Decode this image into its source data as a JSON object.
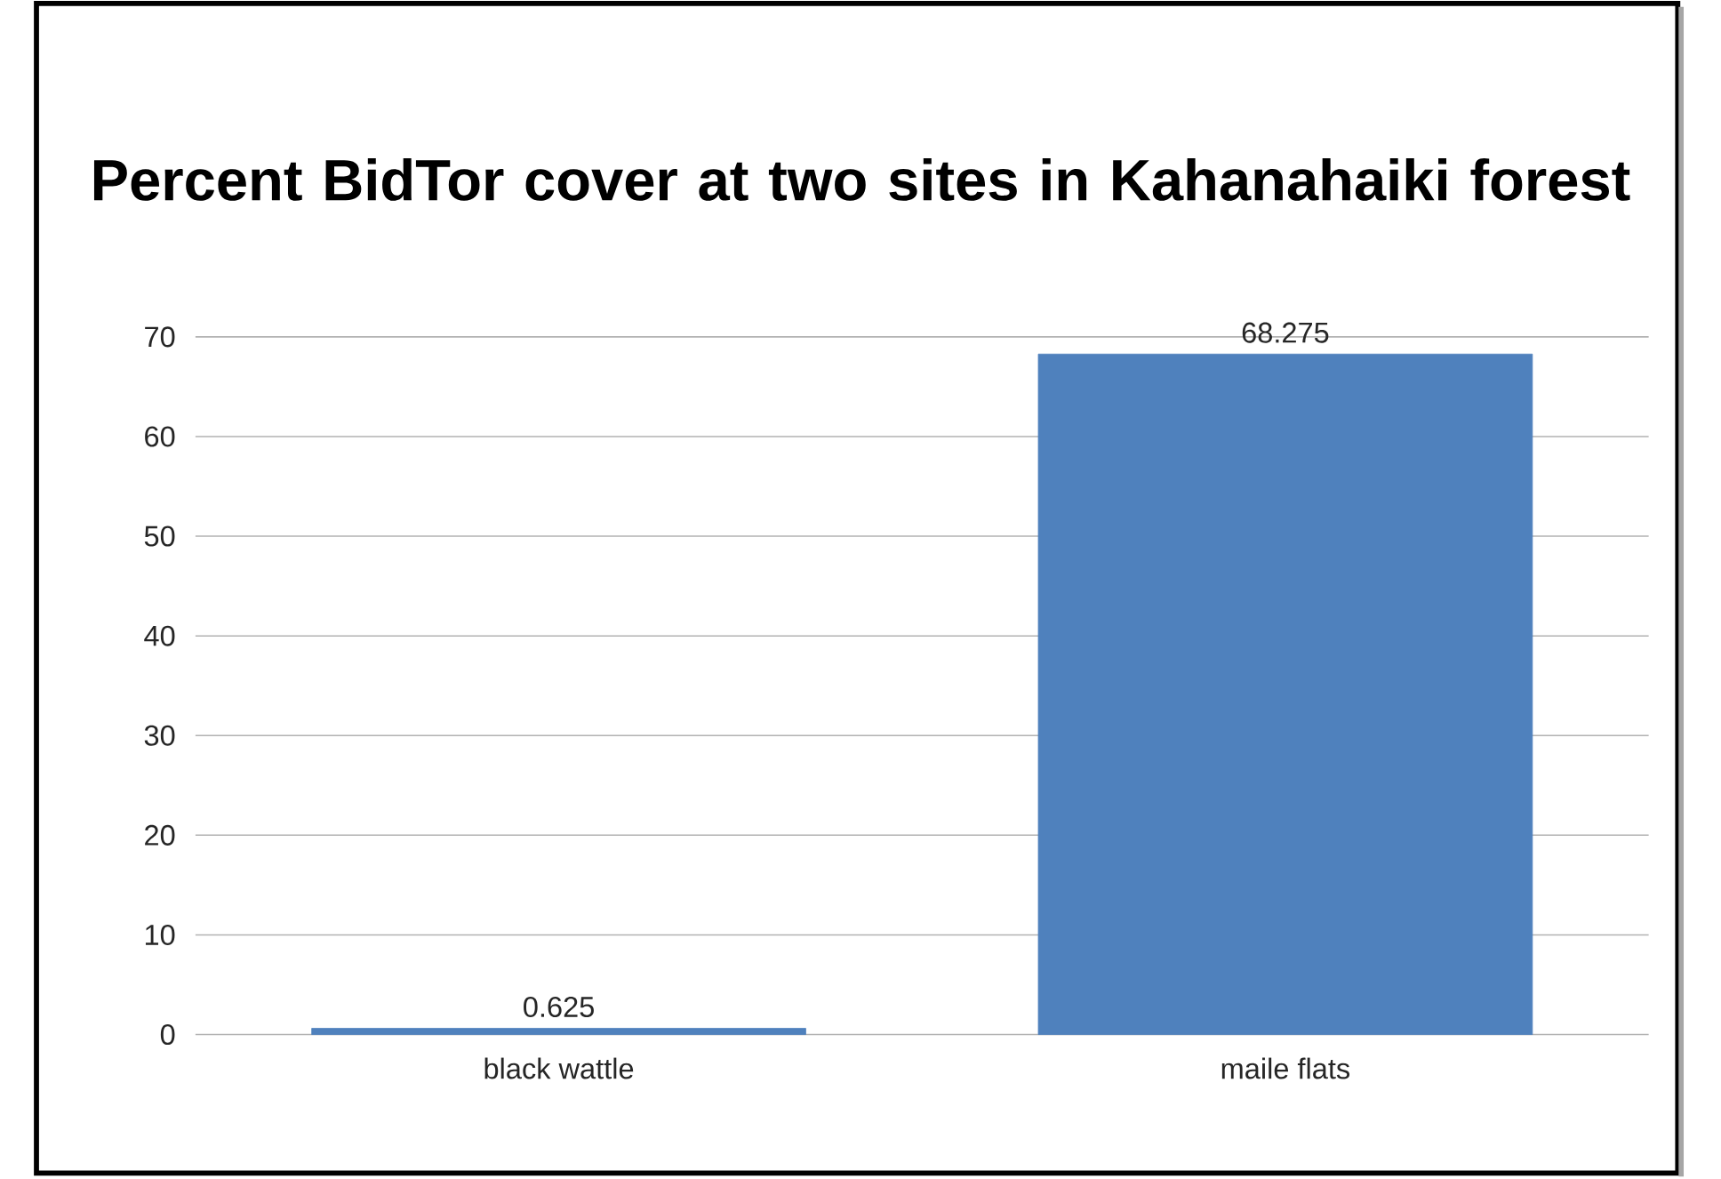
{
  "chart_data": {
    "type": "bar",
    "title": "Percent BidTor cover at two sites in Kahanahaiki forest",
    "categories": [
      "black wattle",
      "maile flats"
    ],
    "values": [
      0.625,
      68.275
    ],
    "color": "#4f81bd",
    "ylim": [
      0,
      70
    ],
    "yticks": [
      0,
      10,
      20,
      30,
      40,
      50,
      60,
      70
    ],
    "grid": "y",
    "data_labels": true
  }
}
